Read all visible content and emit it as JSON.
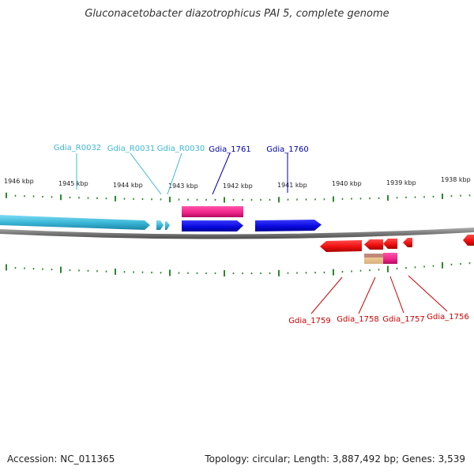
{
  "title": "Gluconacetobacter diazotrophicus PAI 5, complete genome",
  "footer": {
    "accession": "Accession: NC_011365",
    "stats": "Topology: circular; Length: 3,887,492 bp; Genes: 3,539"
  },
  "scale_labels": [
    "1946 kbp",
    "1945 kbp",
    "1944 kbp",
    "1943 kbp",
    "1942 kbp",
    "1941 kbp",
    "1940 kbp",
    "1939 kbp",
    "1938 kbp"
  ],
  "genes_top": [
    {
      "name": "Gdia_R0032",
      "color": "#3cb8d8"
    },
    {
      "name": "Gdia_R0031",
      "color": "#3cb8d8"
    },
    {
      "name": "Gdia_R0030",
      "color": "#3cb8d8"
    },
    {
      "name": "Gdia_1761",
      "color": "#0000aa"
    },
    {
      "name": "Gdia_1760",
      "color": "#0000aa"
    }
  ],
  "genes_bottom": [
    {
      "name": "Gdia_1759",
      "color": "#cc0000"
    },
    {
      "name": "Gdia_1758",
      "color": "#cc0000"
    },
    {
      "name": "Gdia_1757",
      "color": "#cc0000"
    },
    {
      "name": "Gdia_1756",
      "color": "#cc0000"
    }
  ],
  "colors": {
    "rna_feature": "#3cb8d8",
    "forward_cds": "#1010e0",
    "reverse_cds": "#ee1111",
    "overlay_pink": "#ee2288",
    "backbone": "#7a7a7a",
    "ticks": "#2a8a2a"
  }
}
